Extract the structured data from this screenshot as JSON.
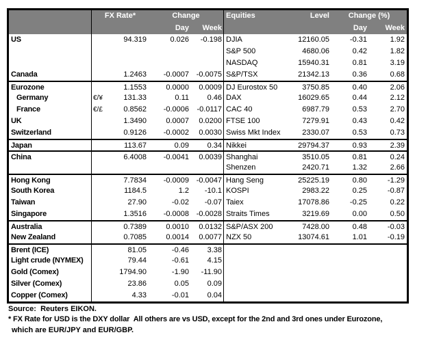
{
  "colors": {
    "header_bg": "#808080",
    "header_text": "#ffffff",
    "border": "#000000"
  },
  "table": {
    "fx_header": {
      "rate": "FX Rate*",
      "change": "Change",
      "day": "Day",
      "week": "Week"
    },
    "eq_header": {
      "name": "Equities",
      "level": "Level",
      "change": "Change (%)",
      "day": "Day",
      "week": "Week"
    },
    "rows": [
      {
        "name": "US",
        "pair": "",
        "fx": "94.319",
        "fx_day": "0.026",
        "fx_week": "-0.198",
        "equity": "DJIA",
        "level": "12160.05",
        "eq_day": "-0.31",
        "eq_week": "1.92"
      },
      {
        "name": "",
        "pair": "",
        "fx": "",
        "fx_day": "",
        "fx_week": "",
        "equity": "S&P 500",
        "level": "4680.06",
        "eq_day": "0.42",
        "eq_week": "1.82"
      },
      {
        "name": "",
        "pair": "",
        "fx": "",
        "fx_day": "",
        "fx_week": "",
        "equity": "NASDAQ",
        "level": "15940.31",
        "eq_day": "0.81",
        "eq_week": "3.19"
      },
      {
        "name": "Canada",
        "pair": "",
        "fx": "1.2463",
        "fx_day": "-0.0007",
        "fx_week": "-0.0075",
        "equity": "S&P/TSX",
        "level": "21342.13",
        "eq_day": "0.36",
        "eq_week": "0.68"
      },
      {
        "name": "Eurozone",
        "pair": "",
        "fx": "1.1553",
        "fx_day": "0.0000",
        "fx_week": "0.0009",
        "equity": "DJ Eurostox 50",
        "level": "3750.85",
        "eq_day": "0.40",
        "eq_week": "2.06",
        "divider_above": true
      },
      {
        "name": "Germany",
        "pair": "€/¥",
        "fx": "131.33",
        "fx_day": "0.11",
        "fx_week": "0.46",
        "equity": "DAX",
        "level": "16029.65",
        "eq_day": "0.44",
        "eq_week": "2.12",
        "indent": true
      },
      {
        "name": "France",
        "pair": "€/£",
        "fx": "0.8562",
        "fx_day": "-0.0006",
        "fx_week": "-0.0117",
        "equity": "CAC 40",
        "level": "6987.79",
        "eq_day": "0.53",
        "eq_week": "2.70",
        "indent": true
      },
      {
        "name": "UK",
        "pair": "",
        "fx": "1.3490",
        "fx_day": "0.0007",
        "fx_week": "0.0200",
        "equity": "FTSE 100",
        "level": "7279.91",
        "eq_day": "0.43",
        "eq_week": "0.42"
      },
      {
        "name": "Switzerland",
        "pair": "",
        "fx": "0.9126",
        "fx_day": "-0.0002",
        "fx_week": "0.0030",
        "equity": "Swiss Mkt Index",
        "level": "2330.07",
        "eq_day": "0.53",
        "eq_week": "0.73"
      },
      {
        "name": "Japan",
        "pair": "",
        "fx": "113.67",
        "fx_day": "0.09",
        "fx_week": "0.34",
        "equity": "Nikkei",
        "level": "29794.37",
        "eq_day": "0.93",
        "eq_week": "2.39",
        "divider_above": true
      },
      {
        "name": "China",
        "pair": "",
        "fx": "6.4008",
        "fx_day": "-0.0041",
        "fx_week": "0.0039",
        "equity": "Shanghai",
        "level": "3510.05",
        "eq_day": "0.81",
        "eq_week": "0.24",
        "divider_above": true
      },
      {
        "name": "",
        "pair": "",
        "fx": "",
        "fx_day": "",
        "fx_week": "",
        "equity": "Shenzen",
        "level": "2420.71",
        "eq_day": "1.32",
        "eq_week": "2.66"
      },
      {
        "name": "Hong Kong",
        "pair": "",
        "fx": "7.7834",
        "fx_day": "-0.0009",
        "fx_week": "-0.0047",
        "equity": "Hang Seng",
        "level": "25225.19",
        "eq_day": "0.80",
        "eq_week": "-1.29",
        "divider_above": true
      },
      {
        "name": "South Korea",
        "pair": "",
        "fx": "1184.5",
        "fx_day": "1.2",
        "fx_week": "-10.1",
        "equity": "KOSPI",
        "level": "2983.22",
        "eq_day": "0.25",
        "eq_week": "-0.87"
      },
      {
        "name": "Taiwan",
        "pair": "",
        "fx": "27.90",
        "fx_day": "-0.02",
        "fx_week": "-0.07",
        "equity": "Taiex",
        "level": "17078.86",
        "eq_day": "-0.25",
        "eq_week": "0.22"
      },
      {
        "name": "Singapore",
        "pair": "",
        "fx": "1.3516",
        "fx_day": "-0.0008",
        "fx_week": "-0.0028",
        "equity": "Straits Times",
        "level": "3219.69",
        "eq_day": "0.00",
        "eq_week": "0.50"
      },
      {
        "name": "Australia",
        "pair": "",
        "fx": "0.7389",
        "fx_day": "0.0010",
        "fx_week": "0.0132",
        "equity": "S&P/ASX  200",
        "level": "7428.00",
        "eq_day": "0.48",
        "eq_week": "-0.03",
        "divider_above": true
      },
      {
        "name": "New Zealand",
        "pair": "",
        "fx": "0.7085",
        "fx_day": "0.0014",
        "fx_week": "0.0077",
        "equity": "NZX 50",
        "level": "13074.61",
        "eq_day": "1.01",
        "eq_week": "-0.19"
      },
      {
        "name": "Brent (ICE)",
        "pair": "",
        "fx": "81.05",
        "fx_day": "-0.46",
        "fx_week": "3.38",
        "equity": "",
        "level": "",
        "eq_day": "",
        "eq_week": "",
        "divider_above": true
      },
      {
        "name": "Light crude (NYMEX)",
        "pair": "",
        "fx": "79.44",
        "fx_day": "-0.61",
        "fx_week": "4.15",
        "equity": "",
        "level": "",
        "eq_day": "",
        "eq_week": ""
      },
      {
        "name": "Gold (Comex)",
        "pair": "",
        "fx": "1794.90",
        "fx_day": "-1.90",
        "fx_week": "-11.90",
        "equity": "",
        "level": "",
        "eq_day": "",
        "eq_week": ""
      },
      {
        "name": "Silver (Comex)",
        "pair": "",
        "fx": "23.86",
        "fx_day": "0.05",
        "fx_week": "0.09",
        "equity": "",
        "level": "",
        "eq_day": "",
        "eq_week": ""
      },
      {
        "name": "Copper (Comex)",
        "pair": "",
        "fx": "4.33",
        "fx_day": "-0.01",
        "fx_week": "0.04",
        "equity": "",
        "level": "",
        "eq_day": "",
        "eq_week": ""
      }
    ]
  },
  "footer": {
    "source": "Source:  Reuters EIKON.",
    "note_line1": "* FX Rate for USD is the DXY dollar  All others are vs USD, except for the 2nd and 3rd ones under Eurozone,",
    "note_line2": "which are EUR/JPY and EUR/GBP."
  }
}
